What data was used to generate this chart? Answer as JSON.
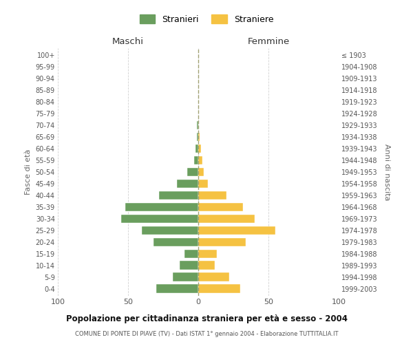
{
  "age_groups": [
    "0-4",
    "5-9",
    "10-14",
    "15-19",
    "20-24",
    "25-29",
    "30-34",
    "35-39",
    "40-44",
    "45-49",
    "50-54",
    "55-59",
    "60-64",
    "65-69",
    "70-74",
    "75-79",
    "80-84",
    "85-89",
    "90-94",
    "95-99",
    "100+"
  ],
  "birth_years": [
    "1999-2003",
    "1994-1998",
    "1989-1993",
    "1984-1988",
    "1979-1983",
    "1974-1978",
    "1969-1973",
    "1964-1968",
    "1959-1963",
    "1954-1958",
    "1949-1953",
    "1944-1948",
    "1939-1943",
    "1934-1938",
    "1929-1933",
    "1924-1928",
    "1919-1923",
    "1914-1918",
    "1909-1913",
    "1904-1908",
    "≤ 1903"
  ],
  "maschi": [
    30,
    18,
    13,
    10,
    32,
    40,
    55,
    52,
    28,
    15,
    8,
    3,
    2,
    1,
    1,
    0,
    0,
    0,
    0,
    0,
    0
  ],
  "femmine": [
    30,
    22,
    12,
    13,
    34,
    55,
    40,
    32,
    20,
    7,
    4,
    3,
    2,
    1,
    0,
    0,
    0,
    0,
    0,
    0,
    0
  ],
  "color_maschi": "#6a9e5e",
  "color_femmine": "#f5c242",
  "title_main": "Popolazione per cittadinanza straniera per età e sesso - 2004",
  "title_sub": "COMUNE DI PONTE DI PIAVE (TV) - Dati ISTAT 1° gennaio 2004 - Elaborazione TUTTITALIA.IT",
  "label_maschi": "Maschi",
  "label_femmine": "Femmine",
  "ylabel_left": "Fasce di età",
  "ylabel_right": "Anni di nascita",
  "legend_maschi": "Stranieri",
  "legend_femmine": "Straniere",
  "xlim": 100,
  "background_color": "#ffffff",
  "grid_color": "#cccccc"
}
